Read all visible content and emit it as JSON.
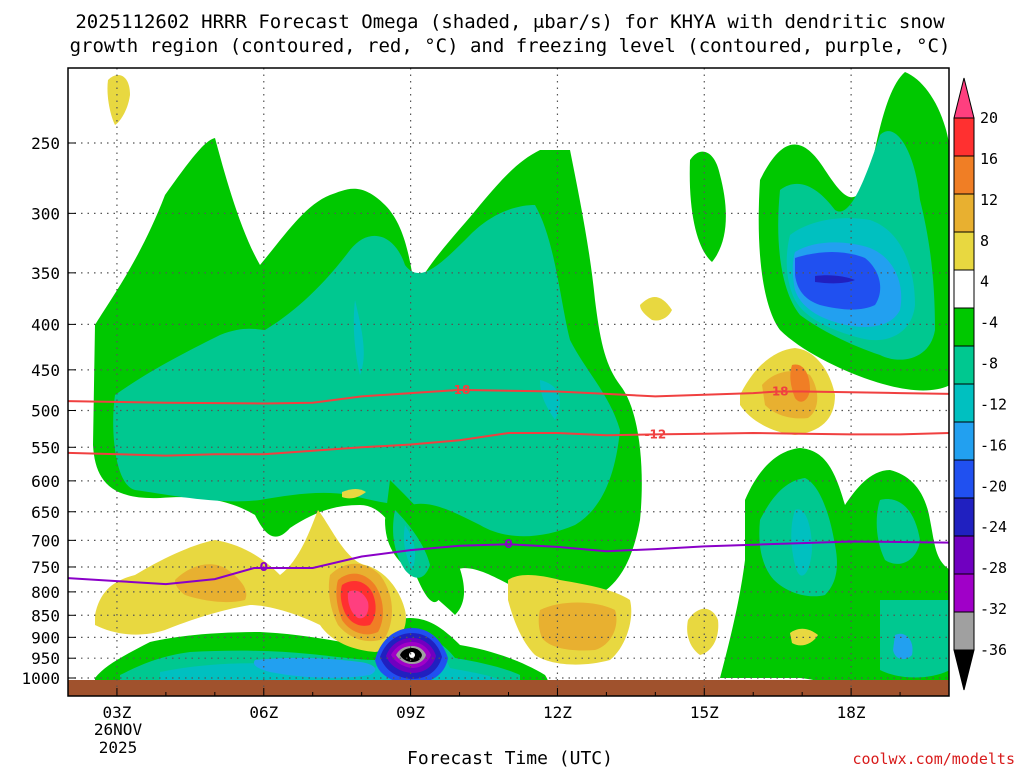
{
  "chart_data": {
    "type": "contour",
    "title_line1": "2025112602 HRRR Forecast Omega (shaded, μbar/s) for KHYA with dendritic snow",
    "title_line2": "growth region (contoured, red, °C) and freezing level (contoured, purple, °C)",
    "xlabel": "Forecast Time (UTC)",
    "credit": "coolwx.com/modelts",
    "x_ticks": [
      "03Z",
      "06Z",
      "09Z",
      "12Z",
      "15Z",
      "18Z"
    ],
    "x_hours": [
      3,
      6,
      9,
      12,
      15,
      18
    ],
    "xlim": [
      2,
      20
    ],
    "date_line1": "26NOV",
    "date_line2": "2025",
    "y_ticks": [
      250,
      300,
      350,
      400,
      450,
      500,
      550,
      600,
      650,
      700,
      750,
      800,
      850,
      900,
      950,
      1000
    ],
    "ylim": [
      1015,
      200
    ],
    "colorbar": {
      "labels": [
        "20",
        "16",
        "12",
        "8",
        "4",
        "-4",
        "-8",
        "-12",
        "-16",
        "-20",
        "-24",
        "-28",
        "-32",
        "-36"
      ],
      "colors": [
        "#ff3f7f",
        "#ff3030",
        "#f07e25",
        "#e8b030",
        "#e8d840",
        "#ffffff",
        "#00c800",
        "#00c890",
        "#00c0c0",
        "#22a0f0",
        "#2050f0",
        "#2020c0",
        "#7000c0",
        "#a000c8",
        "#a0a0a0",
        "#000000"
      ]
    },
    "contours": [
      {
        "name": "-18 line",
        "label": "-18",
        "color": "#f04040",
        "label_points": [
          [
            10,
            474
          ],
          [
            16.5,
            476
          ]
        ],
        "points": [
          [
            2,
            488
          ],
          [
            4,
            490
          ],
          [
            6,
            491
          ],
          [
            7,
            490
          ],
          [
            8,
            482
          ],
          [
            9,
            478
          ],
          [
            10,
            474
          ],
          [
            11,
            475
          ],
          [
            12,
            476
          ],
          [
            13,
            479
          ],
          [
            14,
            482
          ],
          [
            15,
            480
          ],
          [
            16,
            478
          ],
          [
            16.5,
            476
          ],
          [
            17,
            476
          ],
          [
            18,
            477
          ],
          [
            19,
            478
          ],
          [
            20,
            479
          ]
        ]
      },
      {
        "name": "-12 line",
        "label": "-12",
        "color": "#f04040",
        "label_points": [
          [
            14,
            532
          ]
        ],
        "points": [
          [
            2,
            558
          ],
          [
            4,
            562
          ],
          [
            5,
            560
          ],
          [
            6,
            560
          ],
          [
            7,
            555
          ],
          [
            8,
            550
          ],
          [
            9,
            546
          ],
          [
            10,
            540
          ],
          [
            11,
            530
          ],
          [
            12,
            530
          ],
          [
            13,
            533
          ],
          [
            14,
            532
          ],
          [
            15,
            531
          ],
          [
            16,
            530
          ],
          [
            17,
            531
          ],
          [
            18,
            532
          ],
          [
            19,
            532
          ],
          [
            20,
            530
          ]
        ]
      },
      {
        "name": "freezing level",
        "label": "0",
        "color": "#8a00c8",
        "label_points": [
          [
            6,
            750
          ],
          [
            11,
            707
          ]
        ],
        "points": [
          [
            2,
            772
          ],
          [
            3,
            778
          ],
          [
            4,
            784
          ],
          [
            5,
            774
          ],
          [
            5.8,
            752
          ],
          [
            6.5,
            752
          ],
          [
            7,
            752
          ],
          [
            8,
            730
          ],
          [
            9,
            718
          ],
          [
            10,
            710
          ],
          [
            11,
            707
          ],
          [
            12,
            712
          ],
          [
            13,
            720
          ],
          [
            14,
            716
          ],
          [
            15,
            711
          ],
          [
            16,
            708
          ],
          [
            17,
            705
          ],
          [
            18,
            702
          ],
          [
            19,
            703
          ],
          [
            20,
            704
          ]
        ]
      }
    ]
  }
}
